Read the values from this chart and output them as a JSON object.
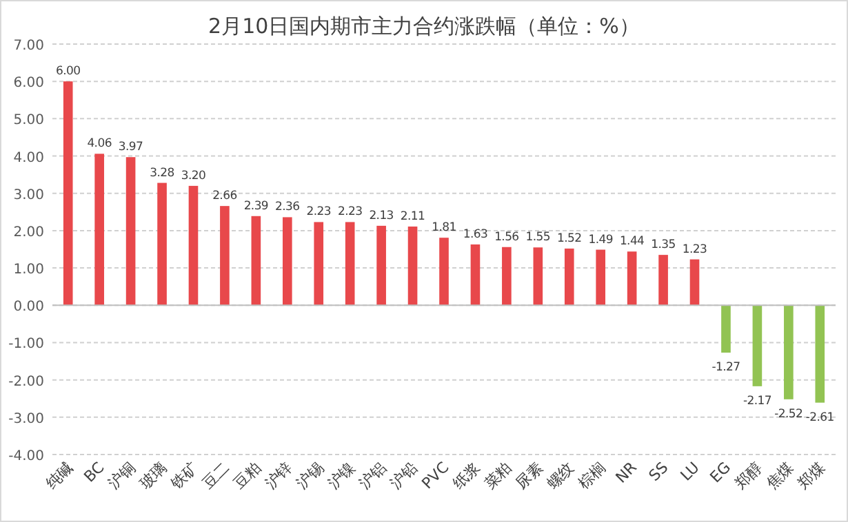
{
  "chart_data": {
    "type": "bar",
    "title": "2月10日国内期市主力合约涨跌幅（单位：%）",
    "categories": [
      "纯碱",
      "BC",
      "沪铜",
      "玻璃",
      "铁矿",
      "豆二",
      "豆粕",
      "沪锌",
      "沪锡",
      "沪镍",
      "沪铝",
      "沪铅",
      "PVC",
      "纸浆",
      "菜粕",
      "尿素",
      "螺纹",
      "棕榈",
      "NR",
      "SS",
      "LU",
      "EG",
      "郑醇",
      "焦煤",
      "郑煤"
    ],
    "values": [
      6.0,
      4.06,
      3.97,
      3.28,
      3.2,
      2.66,
      2.39,
      2.36,
      2.23,
      2.23,
      2.13,
      2.11,
      1.81,
      1.63,
      1.56,
      1.55,
      1.52,
      1.49,
      1.44,
      1.35,
      1.23,
      -1.27,
      -2.17,
      -2.52,
      -2.61
    ],
    "value_labels": [
      "6.00",
      "4.06",
      "3.97",
      "3.28",
      "3.20",
      "2.66",
      "2.39",
      "2.36",
      "2.23",
      "2.23",
      "2.13",
      "2.11",
      "1.81",
      "1.63",
      "1.56",
      "1.55",
      "1.52",
      "1.49",
      "1.44",
      "1.35",
      "1.23",
      "-1.27",
      "-2.17",
      "-2.52",
      "-2.61"
    ],
    "colors": [
      "#e8484b",
      "#e8484b",
      "#e8484b",
      "#e8484b",
      "#e8484b",
      "#e8484b",
      "#e8484b",
      "#e8484b",
      "#e8484b",
      "#e8484b",
      "#e8484b",
      "#e8484b",
      "#e8484b",
      "#e8484b",
      "#e8484b",
      "#e8484b",
      "#e8484b",
      "#e8484b",
      "#e8484b",
      "#e8484b",
      "#e8484b",
      "#92c353",
      "#92c353",
      "#92c353",
      "#92c353"
    ],
    "ylim": [
      -4,
      7
    ],
    "yticks": [
      {
        "value": -4,
        "label": "-4.00"
      },
      {
        "value": -3,
        "label": "-3.00"
      },
      {
        "value": -2,
        "label": "-2.00"
      },
      {
        "value": -1,
        "label": "-1.00"
      },
      {
        "value": 0,
        "label": "0.00"
      },
      {
        "value": 1,
        "label": "1.00"
      },
      {
        "value": 2,
        "label": "2.00"
      },
      {
        "value": 3,
        "label": "3.00"
      },
      {
        "value": 4,
        "label": "4.00"
      },
      {
        "value": 5,
        "label": "5.00"
      },
      {
        "value": 6,
        "label": "6.00"
      },
      {
        "value": 7,
        "label": "7.00"
      }
    ],
    "grid": "y"
  }
}
